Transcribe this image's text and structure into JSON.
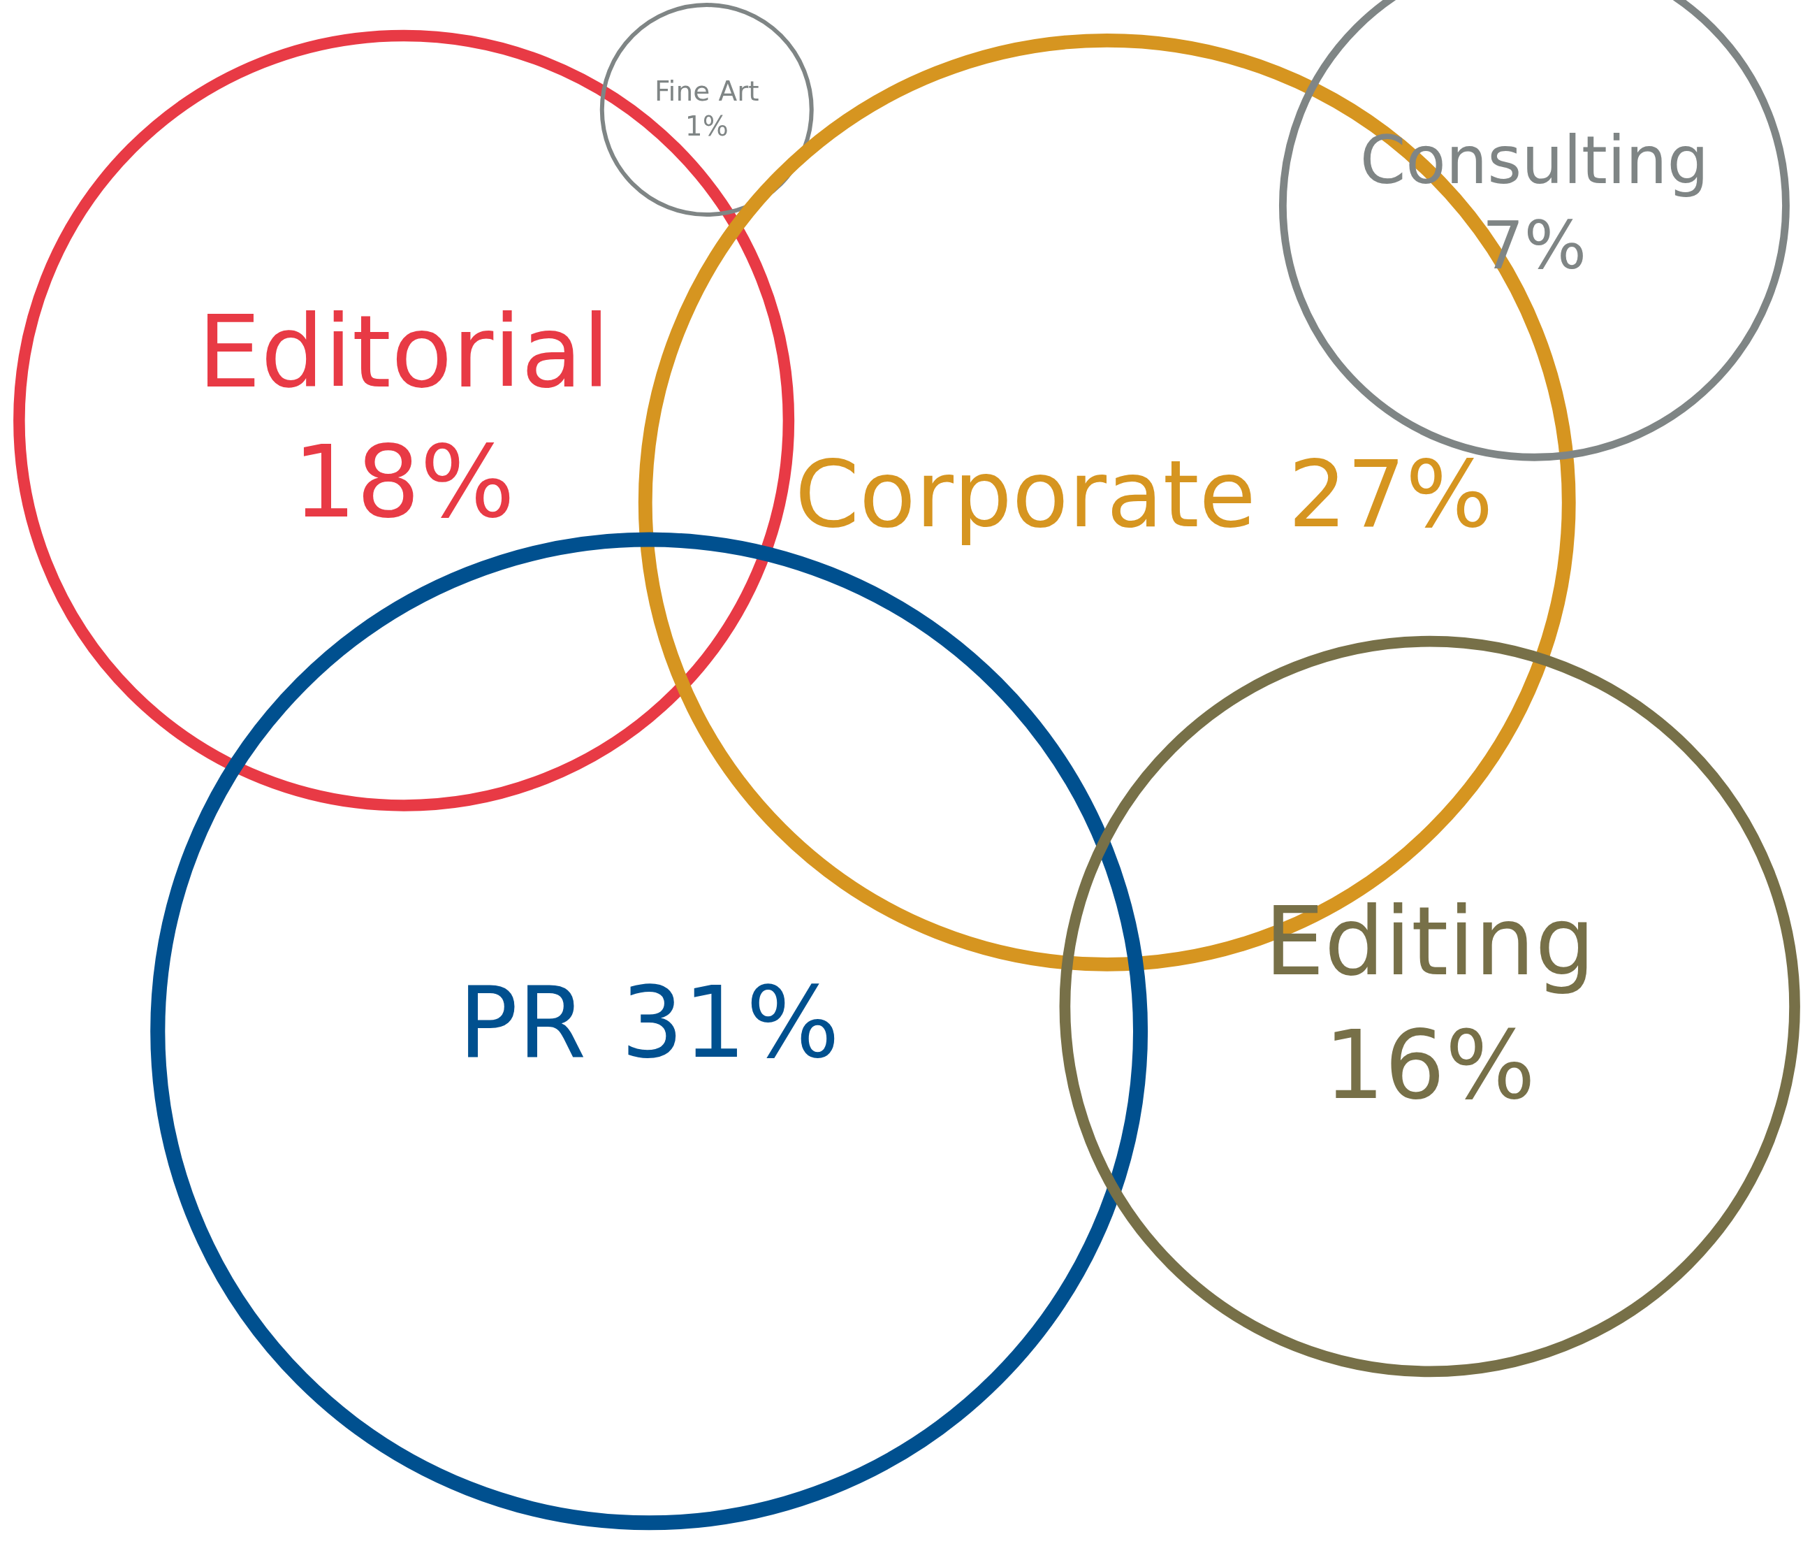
{
  "chart_data": {
    "type": "other",
    "categories": [
      "Editorial",
      "Fine Art",
      "Corporate",
      "Consulting",
      "PR",
      "Editing"
    ],
    "values": [
      18,
      1,
      27,
      7,
      31,
      16
    ],
    "value_labels": [
      "18%",
      "1%",
      "27%",
      "7%",
      "31%",
      "16%"
    ],
    "colors": [
      "#e83a45",
      "#7f8585",
      "#d69520",
      "#7f8585",
      "#00508f",
      "#777048"
    ]
  }
}
